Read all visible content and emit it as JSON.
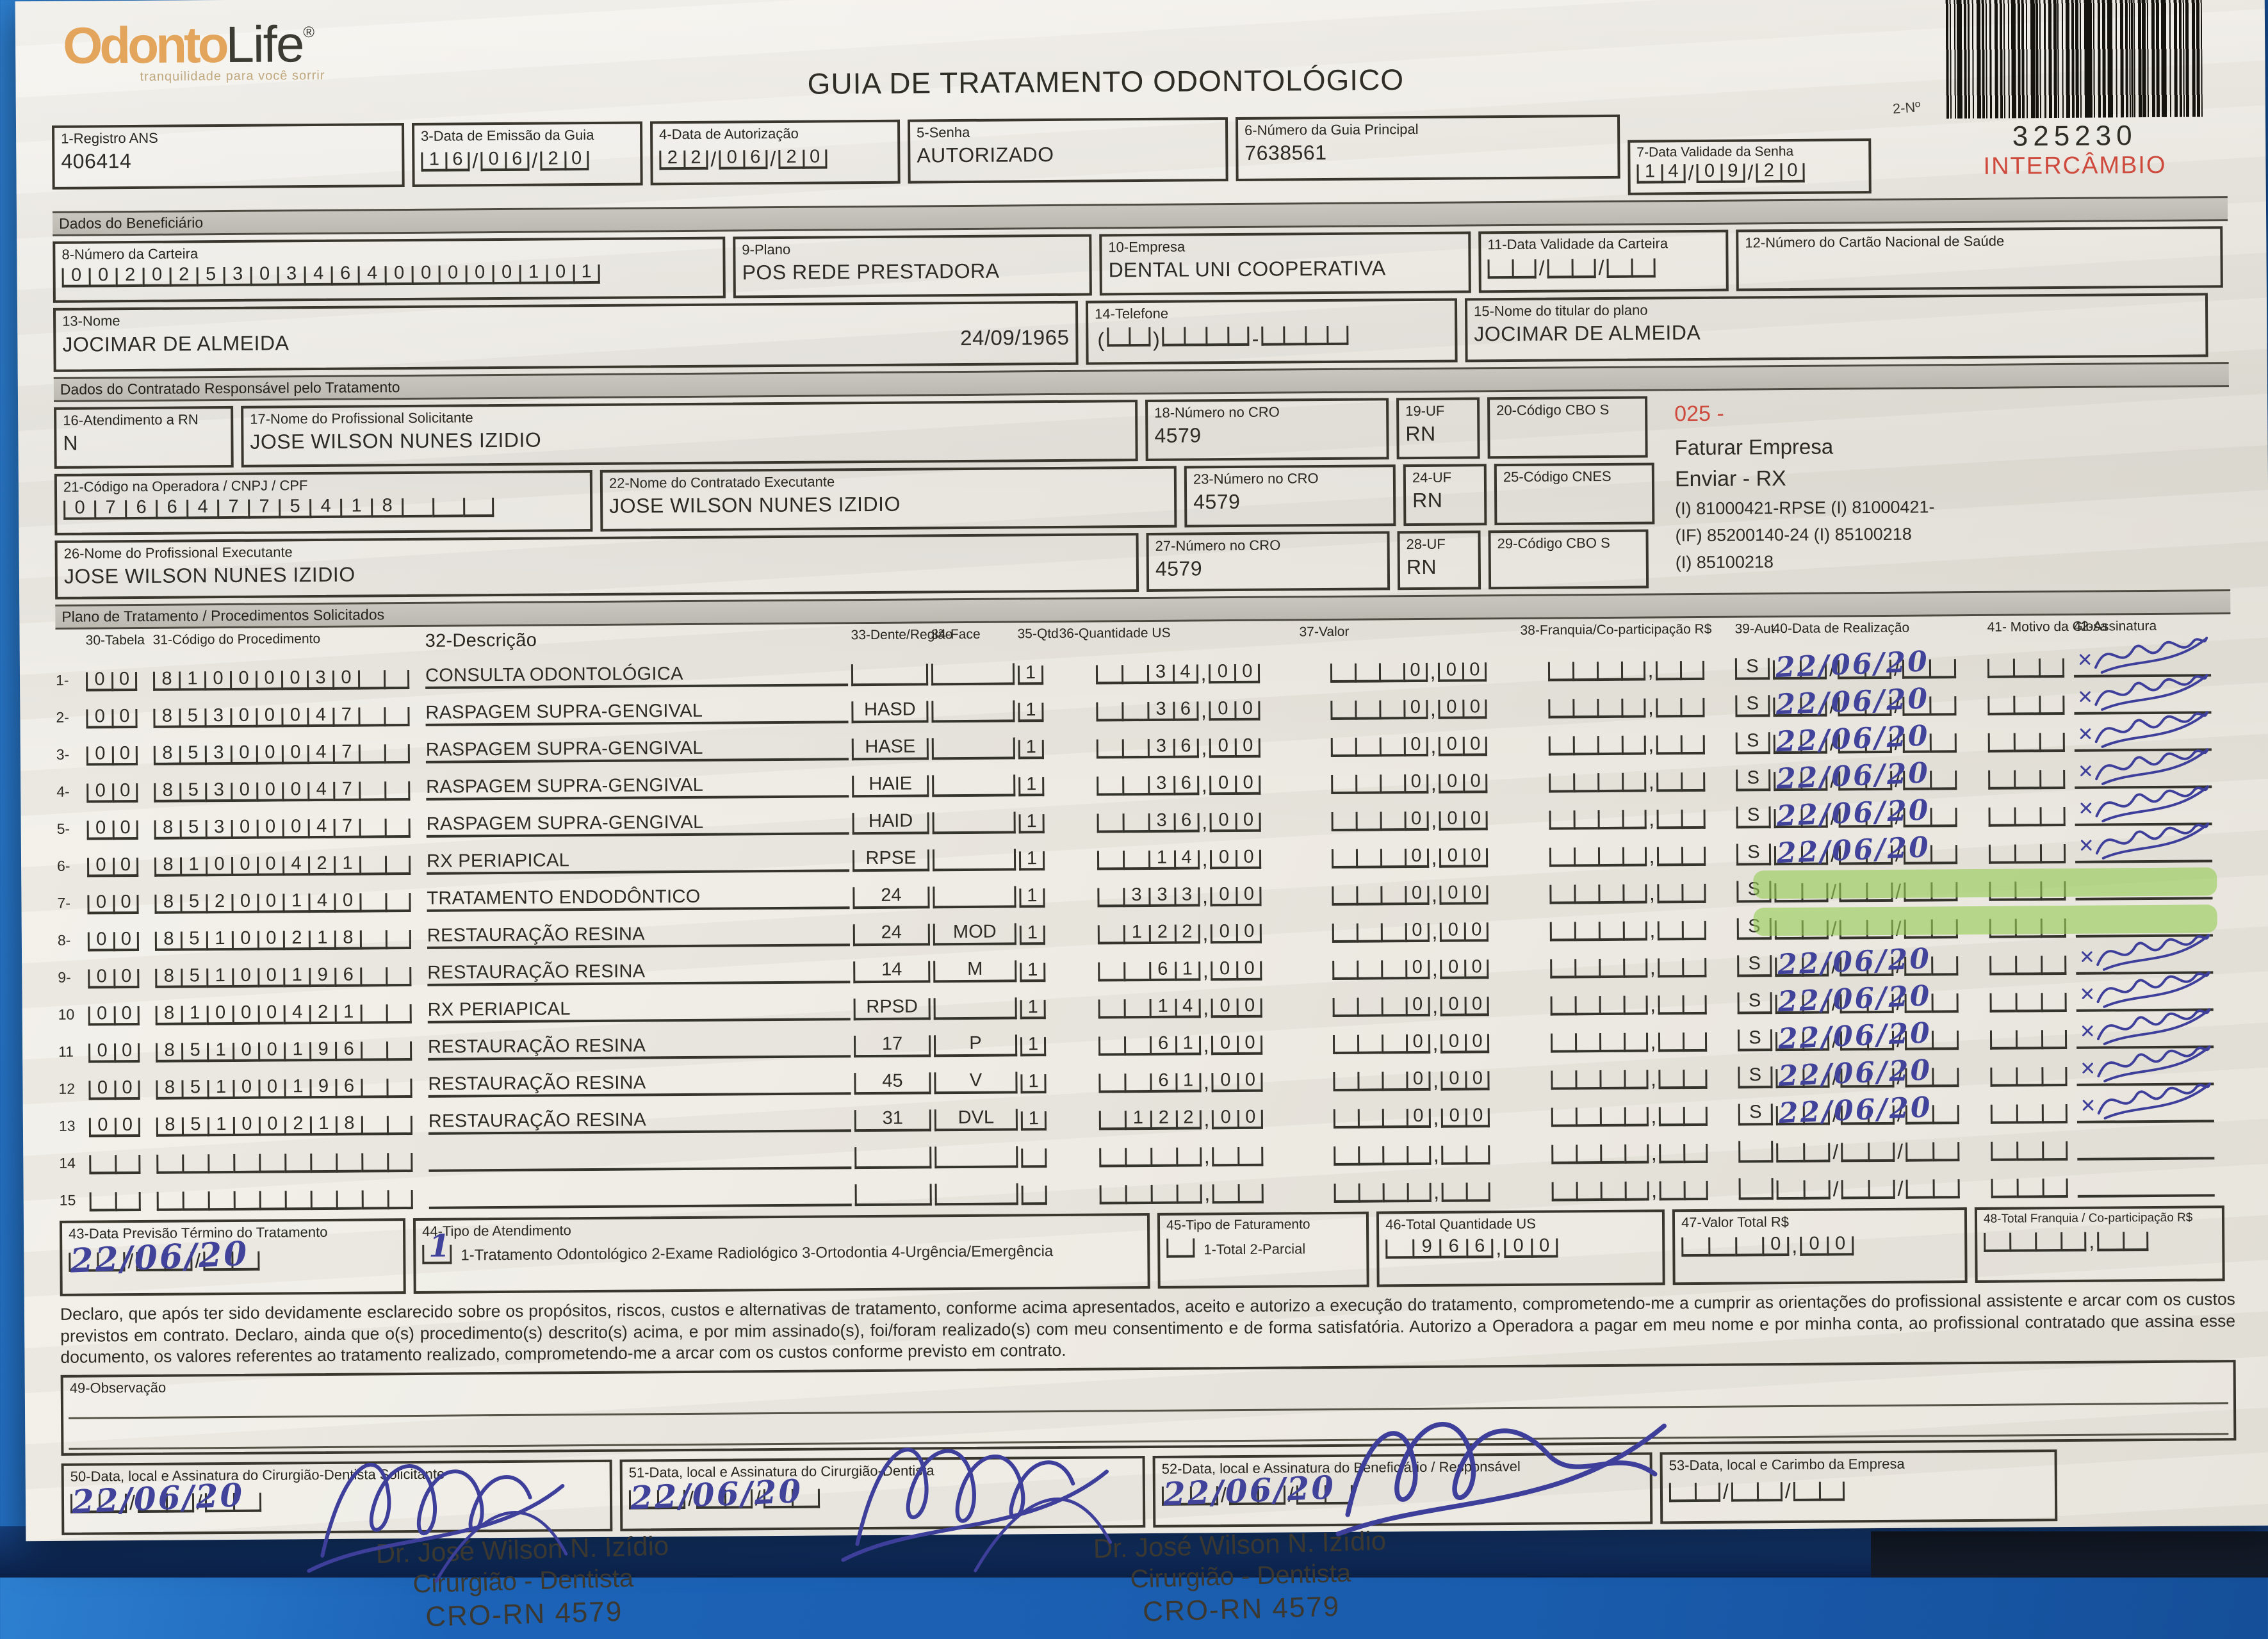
{
  "colors": {
    "brand_orange": "#e3a45b",
    "stamp_red": "#cd4a3d",
    "hand_blue": "#41439b",
    "highlight_green": "#96cd55",
    "backdrop_blue": "#1c63b7"
  },
  "header": {
    "logo_part1": "Odonto",
    "logo_part2": "Life",
    "logo_reg": "®",
    "logo_tagline": "tranquilidade para você sorrir",
    "title": "GUIA DE TRATAMENTO ODONTOLÓGICO",
    "barcode_label": "2-Nº",
    "barcode_number": "325230",
    "stamp_red": "INTERCÂMBIO"
  },
  "top": {
    "f1_label": "1-Registro ANS",
    "f1_value": "406414",
    "f3_label": "3-Data de Emissão da Guia",
    "f3_value": "16/06/20",
    "f4_label": "4-Data de Autorização",
    "f4_value": "22/06/20",
    "f5_label": "5-Senha",
    "f5_value": "AUTORIZADO",
    "f6_label": "6-Número da Guia Principal",
    "f6_value": "7638561",
    "f7_label": "7-Data Validade da Senha",
    "f7_value": "14/09/20"
  },
  "beneficiary": {
    "section_label": "Dados do Beneficiário",
    "f8_label": "8-Número da Carteira",
    "f8_value": "00202530346400000101",
    "f9_label": "9-Plano",
    "f9_value": "POS REDE PRESTADORA",
    "f10_label": "10-Empresa",
    "f10_value": "DENTAL UNI  COOPERATIVA",
    "f11_label": "11-Data Validade da Carteira",
    "f11_value": "",
    "f12_label": "12-Número do Cartão Nacional de Saúde",
    "f12_value": "",
    "f13_label": "13-Nome",
    "f13_value": "JOCIMAR DE ALMEIDA",
    "f13_birthdate": "24/09/1965",
    "f14_label": "14-Telefone",
    "f15_label": "15-Nome do titular do plano",
    "f15_value": "JOCIMAR DE ALMEIDA"
  },
  "contractor": {
    "section_label": "Dados do Contratado Responsável pelo Tratamento",
    "f16_label": "16-Atendimento a RN",
    "f16_value": "N",
    "f17_label": "17-Nome do Profissional Solicitante",
    "f17_value": "JOSE WILSON NUNES IZIDIO",
    "f18_label": "18-Número no CRO",
    "f18_value": "4579",
    "f19_label": "19-UF",
    "f19_value": "RN",
    "f20_label": "20-Código CBO S",
    "f20_value": "",
    "f21_label": "21-Código na Operadora / CNPJ / CPF",
    "f21_value": "07664775418",
    "f22_label": "22-Nome do Contratado Executante",
    "f22_value": "JOSE WILSON NUNES IZIDIO",
    "f23_label": "23-Número no CRO",
    "f23_value": "4579",
    "f24_label": "24-UF",
    "f24_value": "RN",
    "f25_label": "25-Código CNES",
    "f25_value": "",
    "f26_label": "26-Nome do Profissional Executante",
    "f26_value": "JOSE WILSON NUNES IZIDIO",
    "f27_label": "27-Número no CRO",
    "f27_value": "4579",
    "f28_label": "28-UF",
    "f28_value": "RN",
    "f29_label": "29-Código CBO S",
    "f29_value": "",
    "side_code": "025 -",
    "side_line1": "Faturar Empresa",
    "side_line2": "Enviar - RX",
    "side_line3": "(I) 81000421-RPSE   (I) 81000421-",
    "side_line4": "(IF) 85200140-24      (I) 85100218",
    "side_line5": "(I) 85100218"
  },
  "treatment": {
    "section_label": "Plano de Tratamento / Procedimentos Solicitados",
    "headers": {
      "h30": "30-Tabela",
      "h31": "31-Código do Procedimento",
      "h32": "32-Descrição",
      "h33": "33-Dente/Região",
      "h34": "34-Face",
      "h35": "35-Qtd",
      "h36": "36-Quantidade US",
      "h37": "37-Valor",
      "h38": "38-Franquia/Co-participação R$",
      "h39": "39-Aut",
      "h40": "40-Data de Realização",
      "h41": "41- Motivo da Glosa",
      "h42": "42-Assinatura"
    },
    "rows": [
      {
        "n": "1-",
        "tabela": "00",
        "codigo": "81000030",
        "descricao": "CONSULTA ODONTOLÓGICA",
        "dente": "",
        "face": "",
        "qtd": "1",
        "qus": "34,00",
        "valor": "0,00",
        "franquia": "",
        "aut": "S",
        "data": "22/06/20",
        "highlight": false,
        "signed": true
      },
      {
        "n": "2-",
        "tabela": "00",
        "codigo": "85300047",
        "descricao": "RASPAGEM SUPRA-GENGIVAL",
        "dente": "HASD",
        "face": "",
        "qtd": "1",
        "qus": "36,00",
        "valor": "0,00",
        "franquia": "",
        "aut": "S",
        "data": "22/06/20",
        "highlight": false,
        "signed": true
      },
      {
        "n": "3-",
        "tabela": "00",
        "codigo": "85300047",
        "descricao": "RASPAGEM SUPRA-GENGIVAL",
        "dente": "HASE",
        "face": "",
        "qtd": "1",
        "qus": "36,00",
        "valor": "0,00",
        "franquia": "",
        "aut": "S",
        "data": "22/06/20",
        "highlight": false,
        "signed": true
      },
      {
        "n": "4-",
        "tabela": "00",
        "codigo": "85300047",
        "descricao": "RASPAGEM SUPRA-GENGIVAL",
        "dente": "HAIE",
        "face": "",
        "qtd": "1",
        "qus": "36,00",
        "valor": "0,00",
        "franquia": "",
        "aut": "S",
        "data": "22/06/20",
        "highlight": false,
        "signed": true
      },
      {
        "n": "5-",
        "tabela": "00",
        "codigo": "85300047",
        "descricao": "RASPAGEM SUPRA-GENGIVAL",
        "dente": "HAID",
        "face": "",
        "qtd": "1",
        "qus": "36,00",
        "valor": "0,00",
        "franquia": "",
        "aut": "S",
        "data": "22/06/20",
        "highlight": false,
        "signed": true
      },
      {
        "n": "6-",
        "tabela": "00",
        "codigo": "81000421",
        "descricao": "RX PERIAPICAL",
        "dente": "RPSE",
        "face": "",
        "qtd": "1",
        "qus": "14,00",
        "valor": "0,00",
        "franquia": "",
        "aut": "S",
        "data": "22/06/20",
        "highlight": false,
        "signed": true
      },
      {
        "n": "7-",
        "tabela": "00",
        "codigo": "85200140",
        "descricao": "TRATAMENTO ENDODÔNTICO",
        "dente": "24",
        "face": "",
        "qtd": "1",
        "qus": "333,00",
        "valor": "0,00",
        "franquia": "",
        "aut": "S",
        "data": "",
        "highlight": true,
        "signed": false
      },
      {
        "n": "8-",
        "tabela": "00",
        "codigo": "85100218",
        "descricao": "RESTAURAÇÃO RESINA",
        "dente": "24",
        "face": "MOD",
        "qtd": "1",
        "qus": "122,00",
        "valor": "0,00",
        "franquia": "",
        "aut": "S",
        "data": "",
        "highlight": true,
        "signed": false
      },
      {
        "n": "9-",
        "tabela": "00",
        "codigo": "85100196",
        "descricao": "RESTAURAÇÃO RESINA",
        "dente": "14",
        "face": "M",
        "qtd": "1",
        "qus": "61,00",
        "valor": "0,00",
        "franquia": "",
        "aut": "S",
        "data": "22/06/20",
        "highlight": false,
        "signed": true
      },
      {
        "n": "10",
        "tabela": "00",
        "codigo": "81000421",
        "descricao": "RX PERIAPICAL",
        "dente": "RPSD",
        "face": "",
        "qtd": "1",
        "qus": "14,00",
        "valor": "0,00",
        "franquia": "",
        "aut": "S",
        "data": "22/06/20",
        "highlight": false,
        "signed": true
      },
      {
        "n": "11",
        "tabela": "00",
        "codigo": "85100196",
        "descricao": "RESTAURAÇÃO RESINA",
        "dente": "17",
        "face": "P",
        "qtd": "1",
        "qus": "61,00",
        "valor": "0,00",
        "franquia": "",
        "aut": "S",
        "data": "22/06/20",
        "highlight": false,
        "signed": true
      },
      {
        "n": "12",
        "tabela": "00",
        "codigo": "85100196",
        "descricao": "RESTAURAÇÃO RESINA",
        "dente": "45",
        "face": "V",
        "qtd": "1",
        "qus": "61,00",
        "valor": "0,00",
        "franquia": "",
        "aut": "S",
        "data": "22/06/20",
        "highlight": false,
        "signed": true
      },
      {
        "n": "13",
        "tabela": "00",
        "codigo": "85100218",
        "descricao": "RESTAURAÇÃO RESINA",
        "dente": "31",
        "face": "DVL",
        "qtd": "1",
        "qus": "122,00",
        "valor": "0,00",
        "franquia": "",
        "aut": "S",
        "data": "22/06/20",
        "highlight": false,
        "signed": true
      },
      {
        "n": "14",
        "tabela": "",
        "codigo": "",
        "descricao": "",
        "dente": "",
        "face": "",
        "qtd": "",
        "qus": "",
        "valor": "",
        "franquia": "",
        "aut": "",
        "data": "",
        "highlight": false,
        "signed": false
      },
      {
        "n": "15",
        "tabela": "",
        "codigo": "",
        "descricao": "",
        "dente": "",
        "face": "",
        "qtd": "",
        "qus": "",
        "valor": "",
        "franquia": "",
        "aut": "",
        "data": "",
        "highlight": false,
        "signed": false
      }
    ]
  },
  "totals": {
    "f43_label": "43-Data Previsão Término do Tratamento",
    "f43_value": "22/06/20",
    "f44_label": "44-Tipo de Atendimento",
    "f44_value": "1",
    "f44_options": "1-Tratamento Odontológico  2-Exame Radiológico  3-Ortodontia  4-Urgência/Emergência",
    "f45_label": "45-Tipo de Faturamento",
    "f45_value": "",
    "f45_options": "1-Total  2-Parcial",
    "f46_label": "46-Total Quantidade US",
    "f46_value": "966,00",
    "f47_label": "47-Valor Total R$",
    "f47_value": "0,00",
    "f48_label": "48-Total Franquia / Co-participação R$",
    "f48_value": ""
  },
  "declaration": {
    "text": "Declaro, que após ter sido devidamente esclarecido sobre os propósitos, riscos, custos e alternativas de tratamento, conforme acima apresentados, aceito e autorizo a execução do tratamento, comprometendo-me a cumprir as orientações do profissional assistente e arcar com os custos previstos em contrato. Declaro, ainda que o(s) procedimento(s) descrito(s) acima, e por mim assinado(s), foi/foram realizado(s) com meu consentimento e de forma satisfatória. Autorizo a Operadora a pagar em meu nome e por minha conta, ao profissional contratado que assina esse documento, os valores referentes ao tratamento realizado, comprometendo-me a arcar com os custos conforme previsto em contrato."
  },
  "observation": {
    "f49_label": "49-Observação"
  },
  "signatures": {
    "f50_label": "50-Data, local e Assinatura do Cirurgião-Dentista Solicitante",
    "f50_date": "22/06/20",
    "f51_label": "51-Data, local e Assinatura do Cirurgião-Dentista",
    "f51_date": "22/06/20",
    "f52_label": "52-Data, local e Assinatura do Beneficiário / Responsável",
    "f52_date": "22/06/20",
    "f53_label": "53-Data, local e Carimbo da Empresa",
    "stamp_name": "Dr. José Wilson N. Izídio",
    "stamp_role": "Cirurgião - Dentista",
    "stamp_cro": "CRO-RN 4579"
  }
}
